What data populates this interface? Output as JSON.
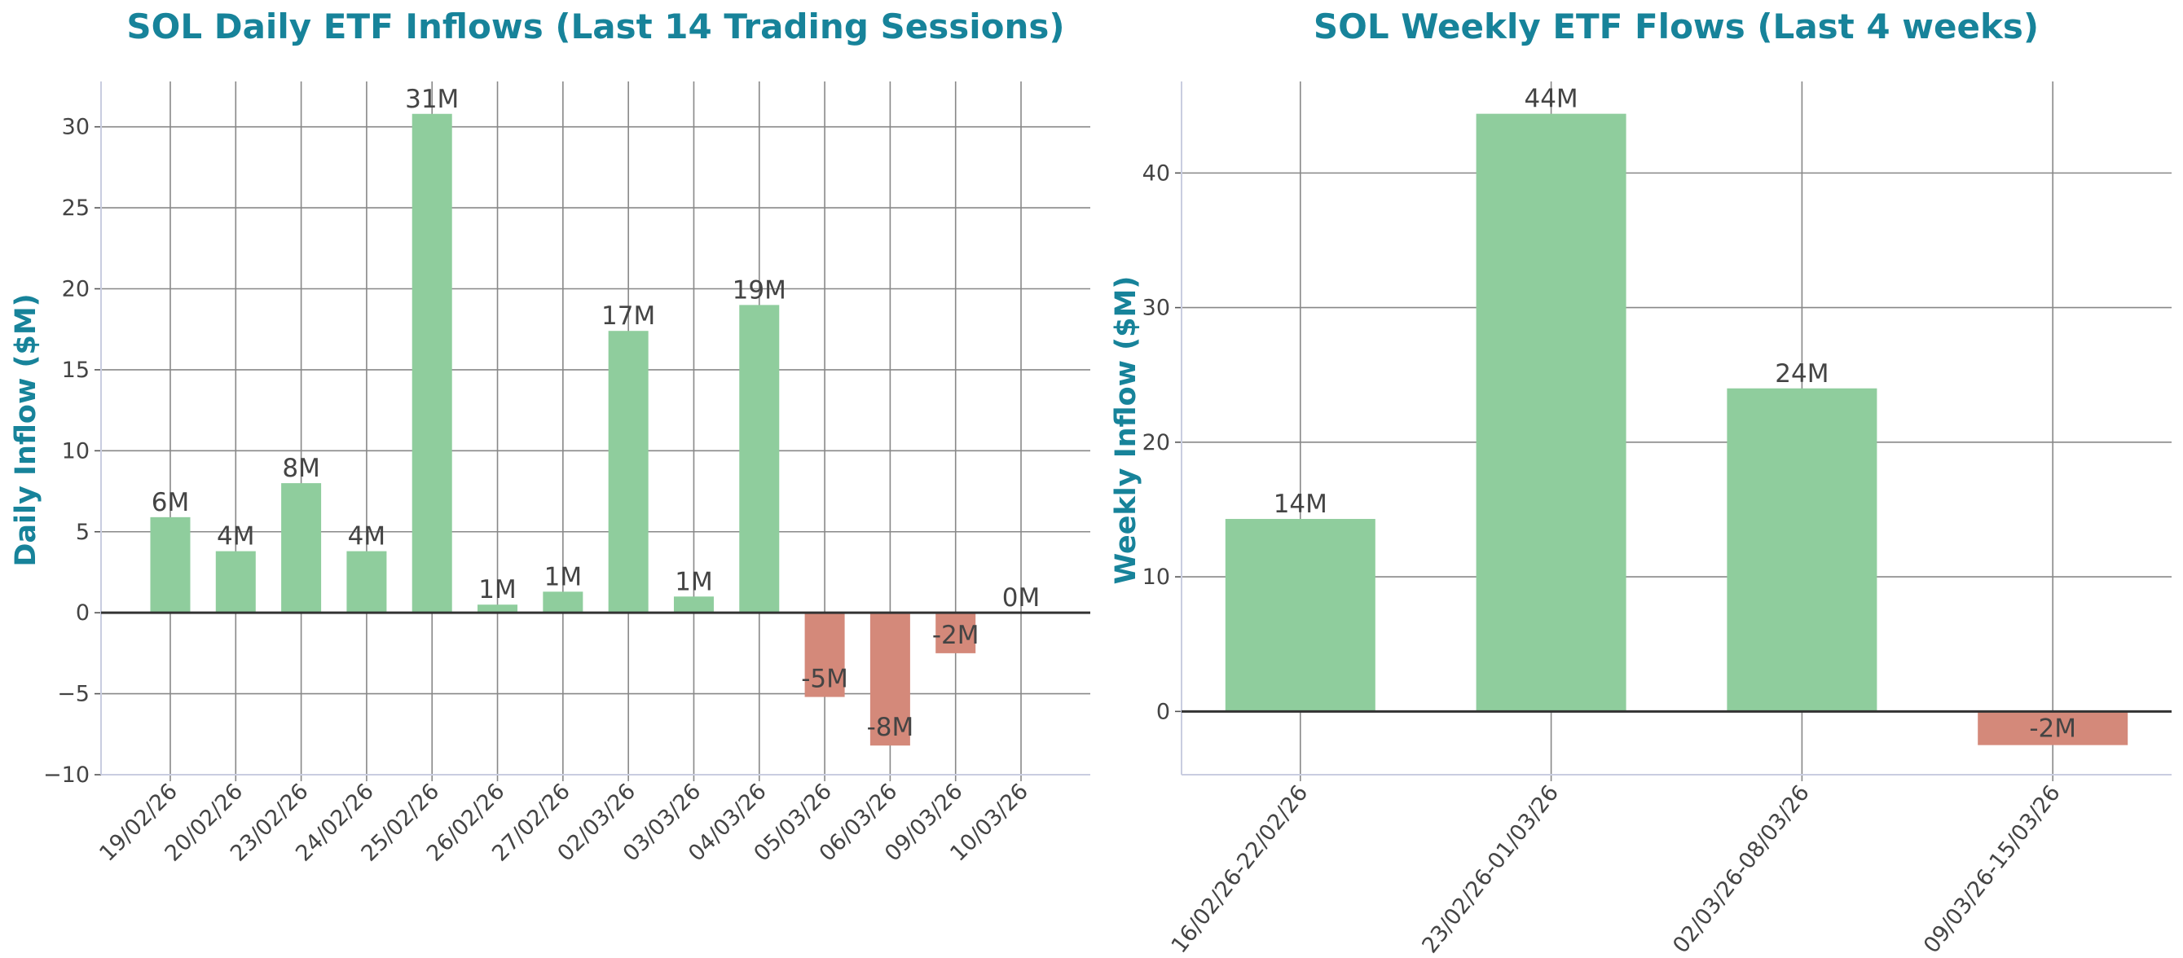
{
  "colors": {
    "title": "#17839a",
    "positive": "#8fcd9d",
    "negative": "#d4897a",
    "text": "#444444"
  },
  "chart_data": [
    {
      "type": "bar",
      "title": "SOL Daily ETF Inflows (Last 14 Trading Sessions)",
      "xlabel": "",
      "ylabel": "Daily Inflow ($M)",
      "categories": [
        "19/02/26",
        "20/02/26",
        "23/02/26",
        "24/02/26",
        "25/02/26",
        "26/02/26",
        "27/02/26",
        "02/03/26",
        "03/03/26",
        "04/03/26",
        "05/03/26",
        "06/03/26",
        "09/03/26",
        "10/03/26"
      ],
      "values": [
        5.9,
        3.8,
        8.0,
        3.8,
        30.8,
        0.5,
        1.3,
        17.4,
        1.0,
        19.0,
        -5.2,
        -8.2,
        -2.5,
        0.0
      ],
      "data_labels": [
        "6M",
        "4M",
        "8M",
        "4M",
        "31M",
        "1M",
        "1M",
        "17M",
        "1M",
        "19M",
        "-5M",
        "-8M",
        "-2M",
        "0M"
      ],
      "ylim": [
        -10,
        32.8
      ],
      "yticks": [
        -10,
        -5,
        0,
        5,
        10,
        15,
        20,
        25,
        30
      ],
      "ytick_labels": [
        "−10",
        "−5",
        "0",
        "5",
        "10",
        "15",
        "20",
        "25",
        "30"
      ],
      "grid": true
    },
    {
      "type": "bar",
      "title": "SOL Weekly ETF Flows (Last 4 weeks)",
      "xlabel": "",
      "ylabel": "Weekly Inflow ($M)",
      "categories": [
        "16/02/26-22/02/26",
        "23/02/26-01/03/26",
        "02/03/26-08/03/26",
        "09/03/26-15/03/26"
      ],
      "values": [
        14.3,
        44.4,
        24.0,
        -2.5
      ],
      "data_labels": [
        "14M",
        "44M",
        "24M",
        "-2M"
      ],
      "ylim": [
        -4.7,
        46.8
      ],
      "yticks": [
        0,
        10,
        20,
        30,
        40
      ],
      "ytick_labels": [
        "0",
        "10",
        "20",
        "30",
        "40"
      ],
      "grid": true
    }
  ]
}
